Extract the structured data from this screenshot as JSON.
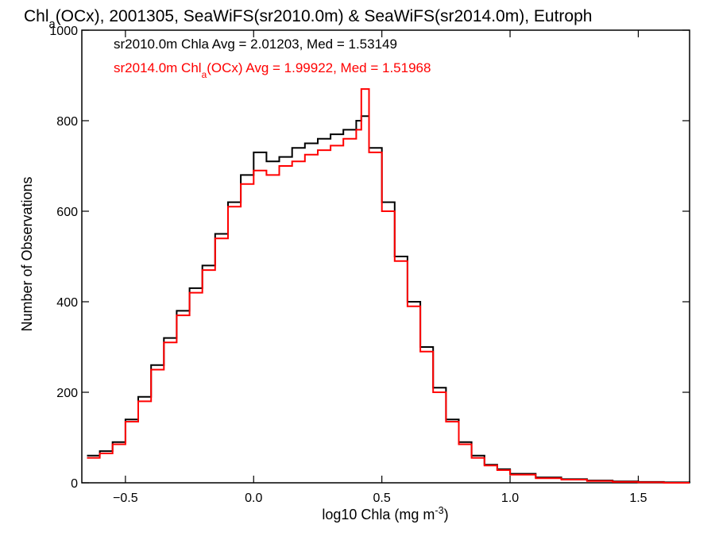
{
  "chart_data": {
    "type": "line",
    "step": true,
    "title": {
      "parts": [
        {
          "text": "Chl"
        },
        {
          "text": "a",
          "sub": true
        },
        {
          "text": "(OCx), 2001305, SeaWiFS(sr2010.0m) & SeaWiFS(sr2014.0m), Eutroph"
        }
      ]
    },
    "xlabel": {
      "parts": [
        {
          "text": "log10 Chla (mg m"
        },
        {
          "text": "-3",
          "sup": true
        },
        {
          "text": ")"
        }
      ]
    },
    "ylabel": "Number of Observations",
    "xlim": [
      -0.67,
      1.7
    ],
    "ylim": [
      0,
      1000
    ],
    "xticks": [
      -0.5,
      0.0,
      0.5,
      1.0,
      1.5
    ],
    "xtick_labels": [
      "−0.5",
      "0.0",
      "0.5",
      "1.0",
      "1.5"
    ],
    "yticks": [
      0,
      200,
      400,
      600,
      800,
      1000
    ],
    "ytick_labels": [
      "0",
      "200",
      "400",
      "600",
      "800",
      "1000"
    ],
    "grid": false,
    "legend": "top-left",
    "x": [
      -0.65,
      -0.6,
      -0.55,
      -0.5,
      -0.45,
      -0.4,
      -0.35,
      -0.3,
      -0.25,
      -0.2,
      -0.15,
      -0.1,
      -0.05,
      0.0,
      0.05,
      0.1,
      0.15,
      0.2,
      0.25,
      0.3,
      0.35,
      0.4,
      0.42,
      0.45,
      0.5,
      0.55,
      0.6,
      0.65,
      0.7,
      0.75,
      0.8,
      0.85,
      0.9,
      0.95,
      1.0,
      1.1,
      1.2,
      1.3,
      1.4,
      1.5,
      1.6,
      1.7
    ],
    "series": [
      {
        "name": "sr2010.0m Chla",
        "color": "#000000",
        "annotation": {
          "parts": [
            {
              "text": "sr2010.0m Chla Avg = 2.01203, Med = 1.53149"
            }
          ]
        },
        "values": [
          60,
          70,
          90,
          140,
          190,
          260,
          320,
          380,
          430,
          480,
          550,
          620,
          680,
          730,
          710,
          720,
          740,
          750,
          760,
          770,
          780,
          800,
          810,
          740,
          620,
          500,
          400,
          300,
          210,
          140,
          90,
          60,
          40,
          30,
          20,
          12,
          8,
          5,
          3,
          2,
          1,
          0
        ]
      },
      {
        "name": "sr2014.0m Chla(OCx)",
        "color": "#ff0000",
        "annotation": {
          "parts": [
            {
              "text": "sr2014.0m Chl"
            },
            {
              "text": "a",
              "sub": true
            },
            {
              "text": "(OCx) Avg = 1.99922, Med = 1.51968"
            }
          ]
        },
        "values": [
          55,
          65,
          85,
          135,
          180,
          250,
          310,
          370,
          420,
          470,
          540,
          610,
          660,
          690,
          680,
          700,
          710,
          725,
          735,
          745,
          760,
          780,
          870,
          730,
          600,
          490,
          390,
          290,
          200,
          135,
          85,
          55,
          38,
          28,
          18,
          10,
          7,
          4,
          2,
          1,
          0,
          0
        ]
      }
    ]
  }
}
